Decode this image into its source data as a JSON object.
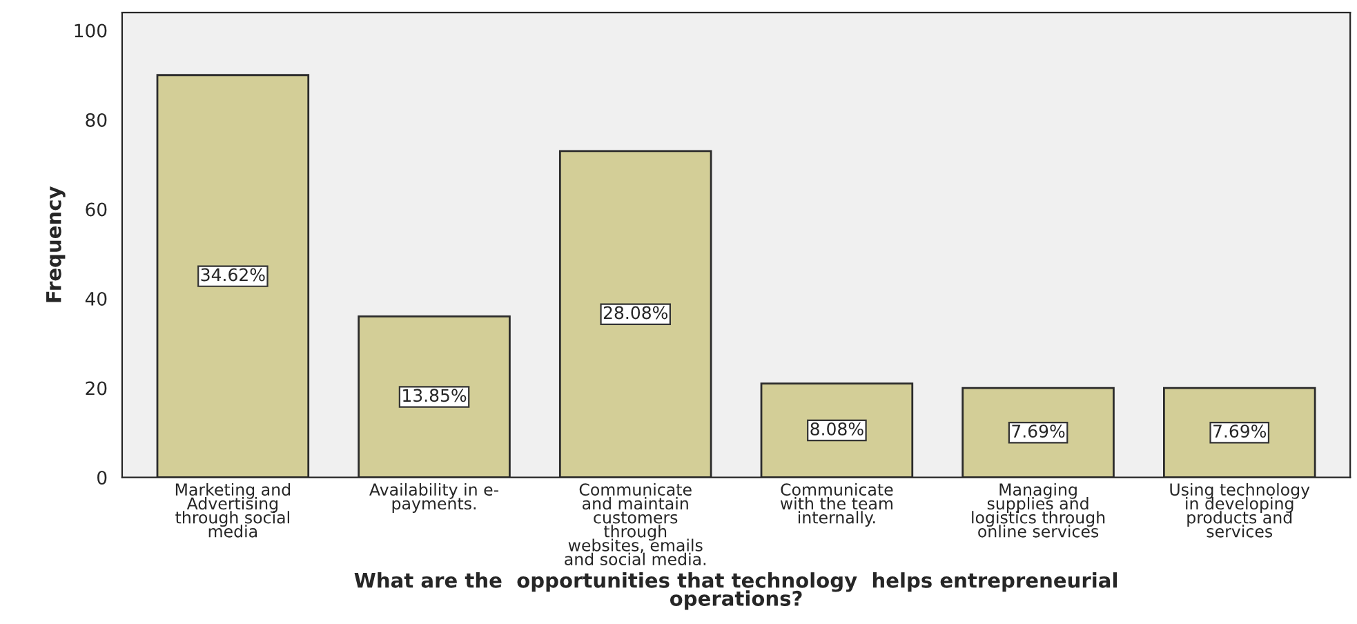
{
  "chart_data": {
    "type": "bar",
    "xlabel": "What are the  opportunities that technology  helps entrepreneurial\noperations?",
    "ylabel": "Frequency",
    "categories": [
      "Marketing and\nAdvertising\nthrough social\nmedia",
      "Availability in e-\npayments.",
      "Communicate\nand maintain\ncustomers\nthrough\nwebsites, emails\nand social media.",
      "Communicate\nwith the team\ninternally.",
      "Managing\nsupplies and\nlogistics through\nonline services",
      "Using technology\nin developing\nproducts and\nservices"
    ],
    "values": [
      90,
      36,
      73,
      21,
      20,
      20
    ],
    "annotations": [
      "34.62%",
      "13.85%",
      "28.08%",
      "8.08%",
      "7.69%",
      "7.69%"
    ],
    "color": "#d3ce97",
    "ylim": [
      0,
      104
    ],
    "yticks": [
      0,
      20,
      40,
      60,
      80,
      100
    ],
    "grid": false,
    "legend": false
  }
}
